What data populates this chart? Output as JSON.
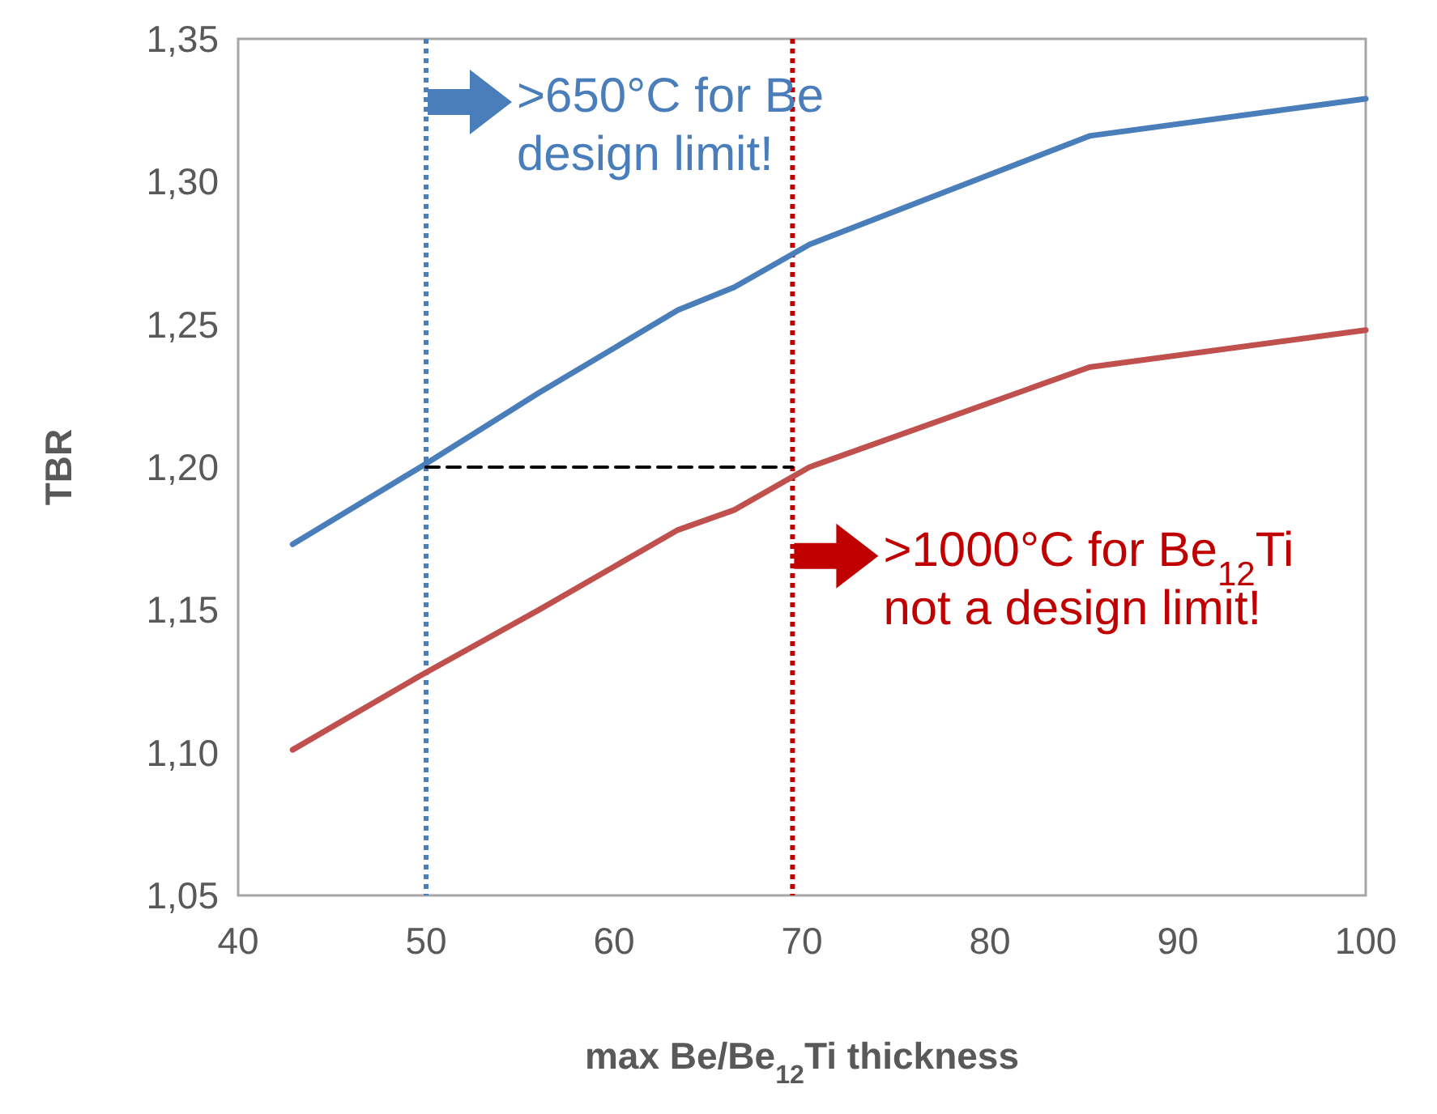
{
  "chart_data": {
    "type": "line",
    "xlabel": "max Be/Be$_{12}$Ti thickness",
    "ylabel": "TBR",
    "xlim": [
      40,
      100
    ],
    "xticks": [
      40,
      50,
      60,
      70,
      80,
      90,
      100
    ],
    "ylim": [
      1.05,
      1.35
    ],
    "yticks": [
      {
        "value": 1.05,
        "label": "1,05"
      },
      {
        "value": 1.1,
        "label": "1,10"
      },
      {
        "value": 1.15,
        "label": "1,15"
      },
      {
        "value": 1.2,
        "label": "1,20"
      },
      {
        "value": 1.25,
        "label": "1,25"
      },
      {
        "value": 1.3,
        "label": "1,30"
      },
      {
        "value": 1.35,
        "label": "1,35"
      }
    ],
    "grid": false,
    "series": [
      {
        "color": "#4a7ebb",
        "x": [
          42.9,
          49.7,
          56,
          63.4,
          66.4,
          70.4,
          85.3,
          100
        ],
        "values": [
          1.173,
          1.2,
          1.226,
          1.255,
          1.263,
          1.278,
          1.316,
          1.329
        ]
      },
      {
        "color": "#c0504d",
        "x": [
          42.9,
          49.7,
          56,
          63.4,
          66.4,
          70.4,
          85.3,
          100
        ],
        "values": [
          1.101,
          1.127,
          1.15,
          1.178,
          1.185,
          1.2,
          1.235,
          1.248
        ]
      },
      {
        "color": "#000000",
        "line_style": "dashed",
        "x": [
          50,
          69.5
        ],
        "values": [
          1.2,
          1.2
        ]
      }
    ],
    "ref_lines": [
      {
        "axis": "x",
        "value": 50,
        "color": "#4a7ebb",
        "line_style": "dotted"
      },
      {
        "axis": "x",
        "value": 69.5,
        "color": "#c00000",
        "line_style": "dotted"
      }
    ],
    "annotations": [
      ">650°C for Be\ndesign limit!",
      ">1000°C for Be$_{12}$Ti\nnot a design limit!"
    ]
  }
}
